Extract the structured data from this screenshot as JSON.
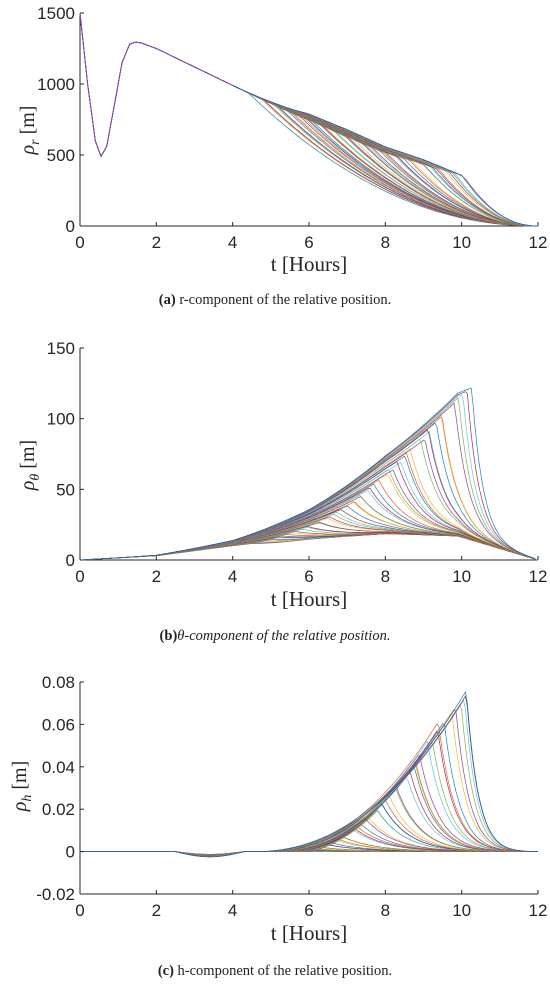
{
  "figure": {
    "panels": [
      {
        "caption_label": "(a)",
        "caption_text": " r-component of the relative position."
      },
      {
        "caption_label": "(b)",
        "caption_text": "θ-component of the relative position."
      },
      {
        "caption_label": "(c)",
        "caption_text": " h-component of the relative position."
      }
    ]
  },
  "chart_data": [
    {
      "type": "line",
      "xlabel": "t [Hours]",
      "ylabel": "ρr [m]",
      "ylabel_symbol": "ρ",
      "ylabel_sub": "r",
      "ylabel_unit": "[m]",
      "xlim": [
        0,
        12
      ],
      "ylim": [
        0,
        1500
      ],
      "xticks": [
        0,
        2,
        4,
        6,
        8,
        10,
        12
      ],
      "yticks": [
        0,
        500,
        1000,
        1500
      ],
      "ytick_labels": [
        "0",
        "500",
        "1000",
        "1500"
      ],
      "series_count": 50,
      "common_path": {
        "x": [
          0,
          0.2,
          0.4,
          0.55,
          0.7,
          0.9,
          1.1,
          1.3,
          1.45,
          1.6,
          2.0,
          3.0,
          4.0
        ],
        "y": [
          1500,
          1000,
          600,
          490,
          560,
          850,
          1150,
          1280,
          1295,
          1290,
          1250,
          1120,
          990
        ]
      },
      "branch_profile": {
        "x": [
          4,
          5,
          6,
          7,
          8,
          9,
          10,
          11,
          12
        ],
        "lower": [
          990,
          860,
          720,
          570,
          420,
          270,
          140,
          45,
          0
        ],
        "upper": [
          990,
          890,
          790,
          680,
          560,
          470,
          360,
          90,
          0
        ]
      },
      "switch_time_range": [
        4.5,
        10.2
      ],
      "final_value": 0
    },
    {
      "type": "line",
      "xlabel": "t [Hours]",
      "ylabel": "ρθ [m]",
      "ylabel_symbol": "ρ",
      "ylabel_sub": "θ",
      "ylabel_unit": "[m]",
      "xlim": [
        0,
        12
      ],
      "ylim": [
        0,
        150
      ],
      "xticks": [
        0,
        2,
        4,
        6,
        8,
        10,
        12
      ],
      "yticks": [
        0,
        50,
        100,
        150
      ],
      "ytick_labels": [
        "0",
        "50",
        "100",
        "150"
      ],
      "series_count": 50,
      "envelope": {
        "x": [
          0,
          2,
          4,
          6,
          8,
          9.9
        ],
        "lower": [
          0,
          3,
          10,
          16,
          19,
          17
        ],
        "upper": [
          0,
          5,
          20,
          50,
          90,
          123
        ]
      },
      "peak_max": 123,
      "switch_time_range": [
        4.5,
        10.2
      ],
      "final_value": 0
    },
    {
      "type": "line",
      "xlabel": "t [Hours]",
      "ylabel": "ρh [m]",
      "ylabel_symbol": "ρ",
      "ylabel_sub": "h",
      "ylabel_unit": "[m]",
      "xlim": [
        0,
        12
      ],
      "ylim": [
        -0.02,
        0.08
      ],
      "xticks": [
        0,
        2,
        4,
        6,
        8,
        10,
        12
      ],
      "yticks": [
        -0.02,
        0,
        0.02,
        0.04,
        0.06,
        0.08
      ],
      "ytick_labels": [
        "-0.02",
        "0",
        "0.02",
        "0.04",
        "0.06",
        "0.08"
      ],
      "series_count": 50,
      "dip": {
        "x": [
          2.5,
          3.5,
          4.3
        ],
        "y": [
          0,
          -0.002,
          0
        ]
      },
      "envelope": {
        "x": [
          4.5,
          6,
          8,
          9.6
        ],
        "upper": [
          0,
          0.015,
          0.05,
          0.077
        ]
      },
      "peak_max": 0.077,
      "switch_time_range": [
        5.0,
        10.2
      ],
      "final_value": 0
    }
  ],
  "palette": [
    "#0072bd",
    "#d95319",
    "#edb120",
    "#7e2f8e",
    "#77ac30",
    "#4dbeee",
    "#a2142f"
  ],
  "top_line_color": "#8e44ad"
}
